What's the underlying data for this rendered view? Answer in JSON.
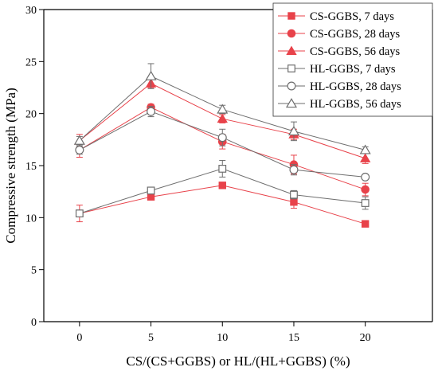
{
  "chart_data": {
    "type": "line",
    "xlabel": "CS/(CS+GGBS) or HL/(HL+GGBS) (%)",
    "ylabel": "Compressive strength (MPa)",
    "x": [
      0,
      5,
      10,
      15,
      20
    ],
    "xticks": [
      0,
      5,
      10,
      15,
      20
    ],
    "yticks": [
      0,
      5,
      10,
      15,
      20,
      25,
      30
    ],
    "xlim": [
      -2.5,
      24.7
    ],
    "ylim": [
      0,
      30
    ],
    "legend_position": "top-right",
    "grid": false,
    "series": [
      {
        "name": "CS-GGBS, 7 days",
        "marker": "square",
        "filled": true,
        "color": "#e8424a",
        "values": [
          10.4,
          12.0,
          13.1,
          11.5,
          9.4
        ],
        "errors": [
          0.8,
          0.3,
          0.3,
          0.6,
          0.2
        ]
      },
      {
        "name": "CS-GGBS, 28 days",
        "marker": "circle",
        "filled": true,
        "color": "#e8424a",
        "values": [
          16.5,
          20.6,
          17.3,
          15.1,
          12.7
        ],
        "errors": [
          0.7,
          0.3,
          0.7,
          0.9,
          0.6
        ]
      },
      {
        "name": "CS-GGBS, 56 days",
        "marker": "triangle",
        "filled": true,
        "color": "#e8424a",
        "values": [
          17.4,
          22.9,
          19.5,
          18.0,
          15.7
        ],
        "errors": [
          0.6,
          0.4,
          0.4,
          0.5,
          0.5
        ]
      },
      {
        "name": "HL-GGBS, 7 days",
        "marker": "square",
        "filled": false,
        "color": "#6e6e6e",
        "values": [
          10.4,
          12.6,
          14.7,
          12.2,
          11.4
        ],
        "errors": [
          0.3,
          0.3,
          0.8,
          0.4,
          0.6
        ]
      },
      {
        "name": "HL-GGBS, 28 days",
        "marker": "circle",
        "filled": false,
        "color": "#6e6e6e",
        "values": [
          16.5,
          20.2,
          17.7,
          14.6,
          13.9
        ],
        "errors": [
          0.4,
          0.5,
          0.8,
          0.5,
          0.2
        ]
      },
      {
        "name": "HL-GGBS, 56 days",
        "marker": "triangle",
        "filled": false,
        "color": "#6e6e6e",
        "values": [
          17.4,
          23.6,
          20.4,
          18.3,
          16.5
        ],
        "errors": [
          0.4,
          1.2,
          0.4,
          0.9,
          0.3
        ]
      }
    ]
  }
}
